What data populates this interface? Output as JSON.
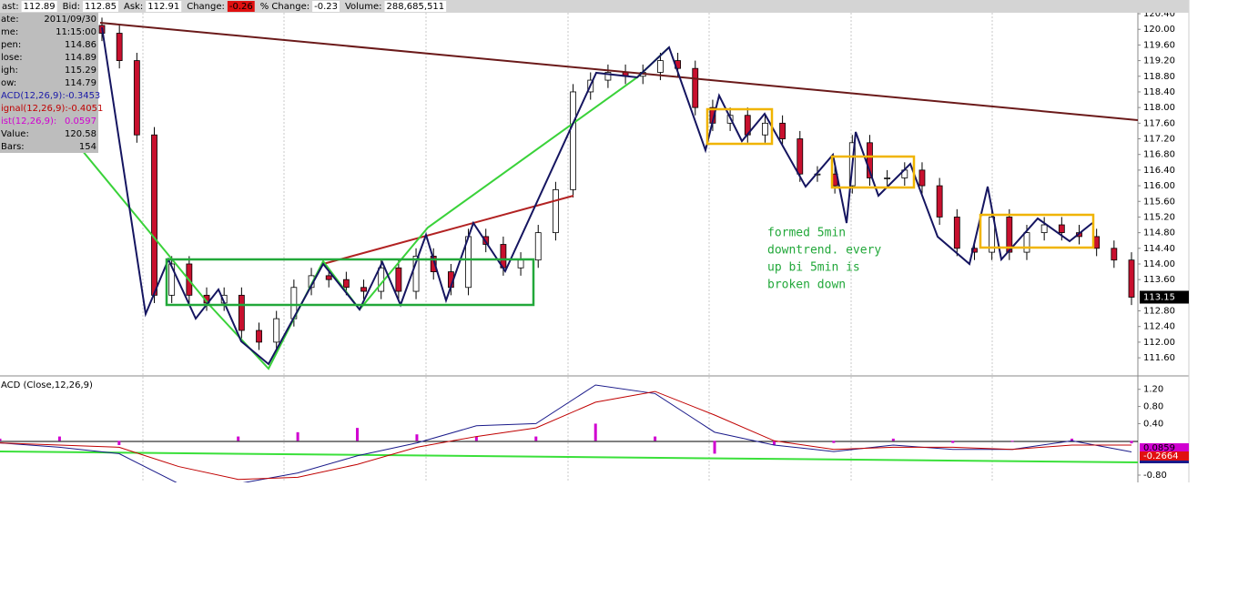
{
  "header": {
    "items": [
      {
        "label": "ast:",
        "value": "112.89"
      },
      {
        "label": "Bid:",
        "value": "112.85"
      },
      {
        "label": "Ask:",
        "value": "112.91"
      },
      {
        "label": "Change:",
        "value": "-0.26"
      },
      {
        "label": "% Change:",
        "value": "-0.23"
      },
      {
        "label": "Volume:",
        "value": "288,685,511"
      }
    ]
  },
  "info_box": {
    "rows": [
      {
        "cells": [
          "ate:",
          "2011/09/30"
        ],
        "color": "#000000"
      },
      {
        "cells": [
          "me:",
          "11:15:00"
        ],
        "color": "#000000"
      },
      {
        "cells": [
          "pen:",
          "114.86"
        ],
        "color": "#000000"
      },
      {
        "cells": [
          "lose:",
          "114.89"
        ],
        "color": "#000000"
      },
      {
        "cells": [
          "igh:",
          "115.29"
        ],
        "color": "#000000"
      },
      {
        "cells": [
          "ow:",
          "114.79"
        ],
        "color": "#000000"
      },
      {
        "cells": [
          "ACD(12,26,9):-0.3453"
        ],
        "color": "#1a1aa8"
      },
      {
        "cells": [
          "ignal(12,26,9):-0.4051"
        ],
        "color": "#c00000"
      },
      {
        "cells": [
          "ist(12,26,9):",
          "0.0597"
        ],
        "color": "#d000d0"
      },
      {
        "cells": [
          "Value:",
          "120.58"
        ],
        "color": "#000000"
      },
      {
        "cells": [
          "Bars:",
          "154"
        ],
        "color": "#000000"
      }
    ]
  },
  "chart_data": [
    {
      "type": "candlestick",
      "open": [
        120.1,
        119.9,
        119.2,
        117.3,
        113.2,
        114.0,
        113.2,
        113.0,
        113.2,
        112.3,
        112.0,
        112.6,
        113.4,
        113.7,
        113.6,
        113.4,
        113.3,
        113.9,
        113.3,
        114.2,
        113.8,
        113.4,
        114.7,
        114.5,
        113.9,
        114.1,
        114.8,
        115.9,
        118.4,
        118.7,
        118.9,
        118.8,
        118.9,
        119.2,
        119.0,
        118.0,
        117.6,
        117.8,
        117.3,
        117.6,
        117.2,
        116.3,
        116.3,
        116.0,
        117.1,
        116.2,
        116.2,
        116.4,
        116.0,
        115.2,
        114.4,
        114.3,
        115.2,
        114.3,
        114.8,
        115.0,
        114.8,
        114.7,
        114.4,
        114.1
      ],
      "high": [
        120.3,
        120.1,
        119.4,
        117.5,
        114.2,
        114.2,
        113.4,
        113.4,
        113.4,
        112.5,
        112.8,
        113.6,
        113.9,
        113.9,
        113.8,
        113.6,
        114.1,
        114.1,
        114.4,
        114.4,
        114.0,
        114.9,
        114.9,
        114.7,
        114.3,
        115.0,
        116.1,
        118.6,
        118.9,
        119.1,
        119.1,
        119.1,
        119.4,
        119.4,
        119.2,
        118.2,
        118.0,
        118.0,
        117.8,
        117.8,
        117.4,
        116.5,
        116.5,
        117.3,
        117.3,
        116.4,
        116.6,
        116.6,
        116.2,
        115.4,
        114.6,
        115.4,
        115.4,
        115.0,
        115.2,
        115.2,
        115.0,
        114.9,
        114.6,
        114.3
      ],
      "low": [
        119.7,
        119.0,
        117.1,
        113.0,
        113.0,
        113.0,
        112.8,
        112.8,
        112.1,
        111.8,
        111.8,
        112.4,
        113.2,
        113.4,
        113.2,
        113.1,
        113.1,
        113.1,
        113.1,
        113.6,
        113.2,
        113.2,
        114.3,
        113.7,
        113.7,
        113.9,
        114.6,
        115.7,
        118.2,
        118.5,
        118.6,
        118.6,
        118.7,
        118.8,
        117.8,
        117.4,
        117.4,
        117.1,
        117.1,
        117.0,
        116.1,
        116.1,
        115.8,
        115.8,
        116.0,
        116.0,
        116.0,
        115.8,
        115.0,
        114.2,
        114.1,
        114.1,
        114.1,
        114.1,
        114.6,
        114.6,
        114.5,
        114.2,
        113.9,
        112.95
      ],
      "close": [
        119.9,
        119.2,
        117.3,
        113.2,
        114.0,
        113.2,
        113.0,
        113.2,
        112.3,
        112.0,
        112.6,
        113.4,
        113.7,
        113.6,
        113.4,
        113.3,
        113.9,
        113.3,
        114.2,
        113.8,
        113.4,
        114.7,
        114.5,
        113.9,
        114.1,
        114.8,
        115.9,
        118.4,
        118.7,
        118.9,
        118.8,
        118.9,
        119.2,
        119.0,
        118.0,
        117.6,
        117.8,
        117.3,
        117.6,
        117.2,
        116.3,
        116.3,
        116.0,
        117.1,
        116.2,
        116.2,
        116.4,
        116.0,
        115.2,
        114.4,
        114.3,
        115.2,
        114.3,
        114.8,
        115.0,
        114.8,
        114.7,
        114.4,
        114.1,
        113.15
      ],
      "last_label": "113.15",
      "up_color": "#ffffff",
      "down_color": "#c8102e",
      "ylim": [
        111.16,
        120.75
      ],
      "yticks": [
        {
          "value": 120.4,
          "label": "120.40"
        },
        {
          "value": 120.0,
          "label": "120.00"
        },
        {
          "value": 119.6,
          "label": "119.60"
        },
        {
          "value": 119.2,
          "label": "119.20"
        },
        {
          "value": 118.8,
          "label": "118.80"
        },
        {
          "value": 118.4,
          "label": "118.40"
        },
        {
          "value": 118.0,
          "label": "118.00"
        },
        {
          "value": 117.6,
          "label": "117.60"
        },
        {
          "value": 117.2,
          "label": "117.20"
        },
        {
          "value": 116.8,
          "label": "116.80"
        },
        {
          "value": 116.4,
          "label": "116.40"
        },
        {
          "value": 116.0,
          "label": "116.00"
        },
        {
          "value": 115.6,
          "label": "115.60"
        },
        {
          "value": 115.2,
          "label": "115.20"
        },
        {
          "value": 114.8,
          "label": "114.80"
        },
        {
          "value": 114.4,
          "label": "114.40"
        },
        {
          "value": 114.0,
          "label": "114.00"
        },
        {
          "value": 113.6,
          "label": "113.60"
        },
        {
          "value": 112.8,
          "label": "112.80"
        },
        {
          "value": 112.4,
          "label": "112.40"
        },
        {
          "value": 112.0,
          "label": "112.00"
        },
        {
          "value": 111.6,
          "label": "111.60"
        }
      ],
      "annotation": [
        "formed 5min",
        "downtrend. every",
        "up bi 5min is",
        "broken down"
      ]
    },
    {
      "type": "macd",
      "title": "ACD (Close,12,26,9)",
      "series": [
        {
          "color": "#1a1a8a",
          "values": [
            -0.05,
            -0.15,
            -0.3,
            -1.0,
            -1.0,
            -0.75,
            -0.35,
            -0.05,
            0.35,
            0.4,
            1.3,
            1.1,
            0.2,
            -0.1,
            -0.25,
            -0.1,
            -0.2,
            -0.2,
            0.0,
            -0.26
          ]
        },
        {
          "color": "#c00000",
          "values": [
            -0.05,
            -0.1,
            -0.15,
            -0.6,
            -0.9,
            -0.85,
            -0.55,
            -0.15,
            0.1,
            0.3,
            0.9,
            1.15,
            0.6,
            0.0,
            -0.2,
            -0.15,
            -0.15,
            -0.2,
            -0.1,
            -0.1
          ]
        }
      ],
      "histogram": {
        "color": "#d000d0",
        "values": [
          0.05,
          0.1,
          -0.1,
          0.0,
          0.1,
          0.2,
          0.3,
          0.15,
          0.1,
          0.1,
          0.4,
          0.1,
          -0.3,
          -0.1,
          -0.05,
          0.05,
          -0.05,
          -0.02,
          0.05,
          -0.06
        ]
      },
      "last_labels": [
        "0.0859",
        "-0.2664"
      ],
      "ylim": [
        -0.97,
        1.47
      ],
      "yticks": [
        {
          "value": 1.2,
          "label": "1.20"
        },
        {
          "value": 0.8,
          "label": "0.80"
        },
        {
          "value": 0.4,
          "label": "0.40"
        },
        {
          "value": -0.8,
          "label": "-0.80"
        }
      ]
    }
  ]
}
